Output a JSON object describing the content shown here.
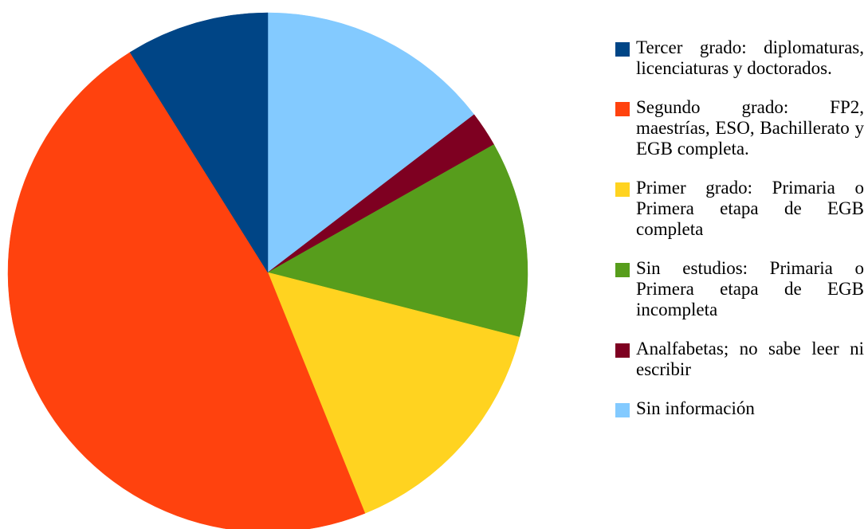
{
  "chart_data": {
    "type": "pie",
    "start_angle_deg": 0,
    "direction": "clockwise",
    "legend_position": "right",
    "slices": [
      {
        "label": "Sin información",
        "value": 14.6,
        "color": "#83caff"
      },
      {
        "label": "Analfabetas; no sabe leer ni escribir",
        "value": 2.2,
        "color": "#7e0021"
      },
      {
        "label": "Sin estudios: Primaria o Primera etapa de EGB incompleta",
        "value": 12.2,
        "color": "#579d1c"
      },
      {
        "label": "Primer grado: Primaria o Primera etapa de EGB completa",
        "value": 14.9,
        "color": "#ffd320"
      },
      {
        "label": "Segundo grado: FP2, maestrías, ESO, Bachillerato y EGB completa.",
        "value": 47.2,
        "color": "#ff420e"
      },
      {
        "label": "Tercer grado: diplomaturas, licenciaturas y doctorados.",
        "value": 8.9,
        "color": "#004586"
      }
    ],
    "legend_order": [
      "Tercer grado: diplomaturas, licenciaturas y doctorados.",
      "Segundo grado: FP2, maestrías, ESO, Bachillerato y EGB completa.",
      "Primer grado: Primaria o Primera etapa de EGB completa",
      "Sin estudios: Primaria o Primera etapa de EGB incompleta",
      "Analfabetas; no sabe leer ni escribir",
      "Sin información"
    ]
  }
}
